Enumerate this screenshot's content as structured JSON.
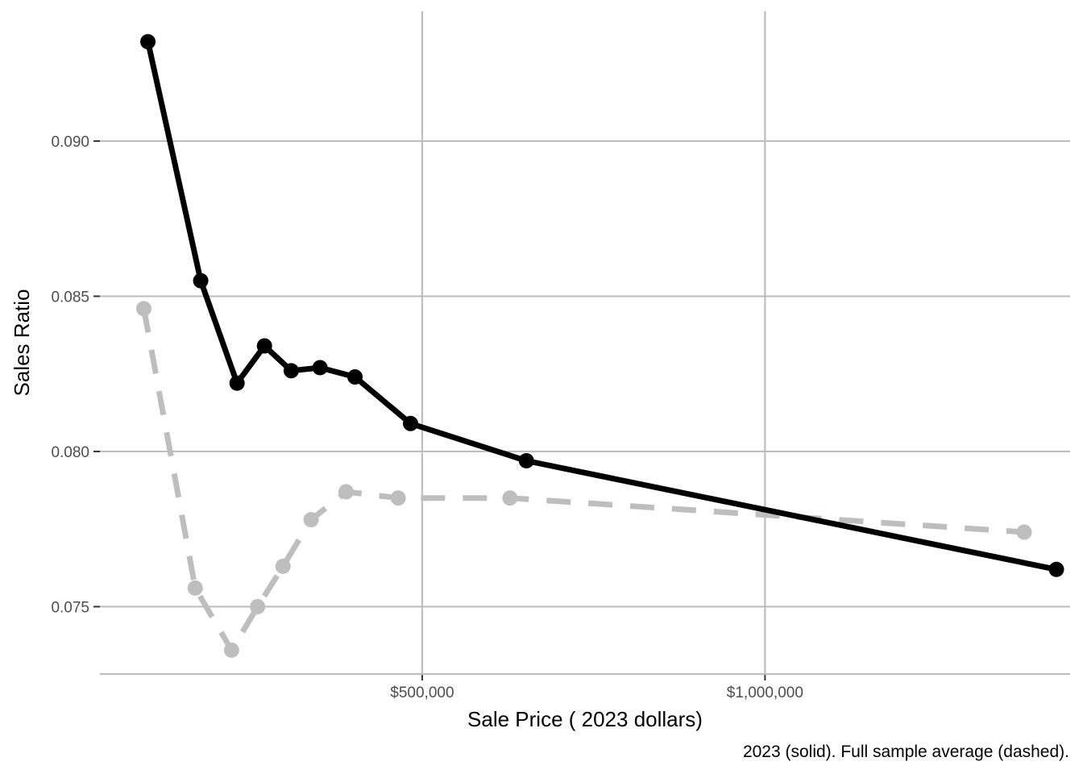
{
  "chart_data": {
    "type": "line",
    "title": "",
    "xlabel": "Sale Price ( 2023 dollars)",
    "ylabel": "Sales Ratio",
    "caption": "2023 (solid). Full sample average (dashed).",
    "xlim": [
      30000,
      1445000
    ],
    "ylim": [
      0.07283,
      0.09418
    ],
    "x_ticks": [
      {
        "value": 500000,
        "label": "$500,000"
      },
      {
        "value": 1000000,
        "label": "$1,000,000"
      }
    ],
    "y_ticks": [
      {
        "value": 0.075,
        "label": "0.075"
      },
      {
        "value": 0.08,
        "label": "0.080"
      },
      {
        "value": 0.085,
        "label": "0.085"
      },
      {
        "value": 0.09,
        "label": "0.090"
      }
    ],
    "grid": true,
    "series": [
      {
        "style": "solid",
        "color": "#000000",
        "x": [
          100000,
          177000,
          230000,
          270000,
          309000,
          351000,
          402000,
          483000,
          652000,
          1425000
        ],
        "y": [
          0.0932,
          0.0855,
          0.0822,
          0.0834,
          0.0826,
          0.0827,
          0.0824,
          0.0809,
          0.0797,
          0.0762
        ]
      },
      {
        "style": "dashed",
        "color": "#bebebe",
        "x": [
          94000,
          169000,
          222000,
          260000,
          297000,
          338000,
          389000,
          465000,
          628000,
          1378000
        ],
        "y": [
          0.0846,
          0.0756,
          0.0736,
          0.075,
          0.0763,
          0.0778,
          0.0787,
          0.0785,
          0.0785,
          0.0774
        ]
      }
    ]
  }
}
